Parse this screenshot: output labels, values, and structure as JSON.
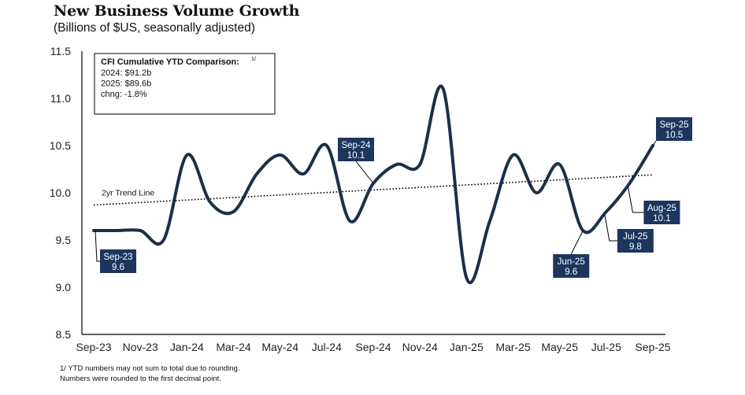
{
  "header": {
    "title": "New Business Volume Growth",
    "subtitle": "(Billions of $US, seasonally adjusted)"
  },
  "footnotes": [
    "1/ YTD numbers may not sum to total due to rounding.",
    "Numbers were rounded to the first decimal point."
  ],
  "colors": {
    "line": "#1c2e4a",
    "callout_bg": "#1c365e",
    "callout_text": "#ffffff",
    "axis": "#000000",
    "trend": "#000000"
  },
  "chart_data": {
    "type": "line",
    "title": "New Business Volume Growth",
    "subtitle": "(Billions of $US, seasonally adjusted)",
    "xlabel": "",
    "ylabel": "",
    "ylim": [
      8.5,
      11.5
    ],
    "yticks": [
      "8.5",
      "9.0",
      "9.5",
      "10.0",
      "10.5",
      "11.0",
      "11.5"
    ],
    "ytick_values": [
      8.5,
      9.0,
      9.5,
      10.0,
      10.5,
      11.0,
      11.5
    ],
    "grid": false,
    "x": [
      "Sep-23",
      "Oct-23",
      "Nov-23",
      "Dec-23",
      "Jan-24",
      "Feb-24",
      "Mar-24",
      "Apr-24",
      "May-24",
      "Jun-24",
      "Jul-24",
      "Aug-24",
      "Sep-24",
      "Oct-24",
      "Nov-24",
      "Dec-24",
      "Jan-25",
      "Feb-25",
      "Mar-25",
      "Apr-25",
      "May-25",
      "Jun-25",
      "Jul-25",
      "Aug-25",
      "Sep-25"
    ],
    "xtick_labels": [
      "Sep-23",
      "Nov-23",
      "Jan-24",
      "Mar-24",
      "May-24",
      "Jul-24",
      "Sep-24",
      "Nov-24",
      "Jan-25",
      "Mar-25",
      "May-25",
      "Jul-25",
      "Sep-25"
    ],
    "series": [
      {
        "name": "New Business Volume",
        "values": [
          9.6,
          9.6,
          9.6,
          9.5,
          10.4,
          9.9,
          9.8,
          10.2,
          10.4,
          10.2,
          10.5,
          9.7,
          10.1,
          10.3,
          10.3,
          11.1,
          9.1,
          9.7,
          10.4,
          10.0,
          10.3,
          9.6,
          9.8,
          10.1,
          10.5
        ]
      }
    ],
    "trend_line": {
      "label": "2yr Trend Line",
      "start": 9.87,
      "end": 10.19
    },
    "annotations": [
      {
        "period": "Sep-23",
        "label": "Sep-23",
        "value": "9.6"
      },
      {
        "period": "Sep-24",
        "label": "Sep-24",
        "value": "10.1"
      },
      {
        "period": "Jun-25",
        "label": "Jun-25",
        "value": "9.6"
      },
      {
        "period": "Jul-25",
        "label": "Jul-25",
        "value": "9.8"
      },
      {
        "period": "Aug-25",
        "label": "Aug-25",
        "value": "10.1"
      },
      {
        "period": "Sep-25",
        "label": "Sep-25",
        "value": "10.5"
      }
    ],
    "legend_box": {
      "title": "CFI Cumulative YTD Comparison:",
      "title_superscript": "1/",
      "lines": [
        "2024: $91.2b",
        "2025: $89.6b",
        "chng: -1.8%"
      ],
      "placement": "top-left"
    }
  }
}
